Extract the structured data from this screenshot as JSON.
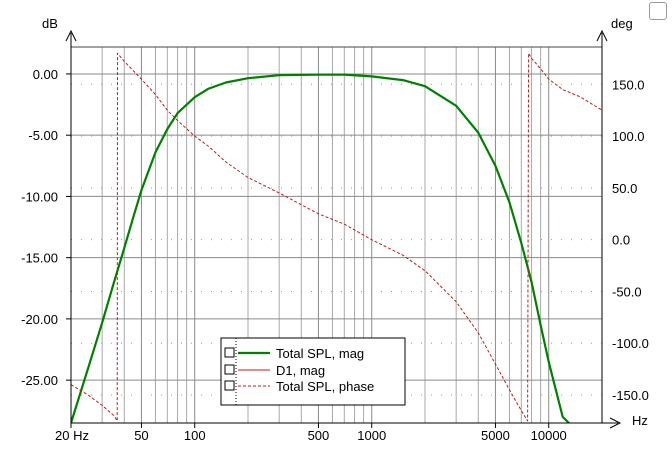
{
  "chart_data": {
    "type": "line",
    "xlabel": "Hz",
    "xscale": "log",
    "xlim": [
      20,
      20000
    ],
    "x_tick_labels": [
      {
        "value": 20,
        "label": "20 Hz"
      },
      {
        "value": 50,
        "label": "50"
      },
      {
        "value": 100,
        "label": "100"
      },
      {
        "value": 500,
        "label": "500"
      },
      {
        "value": 1000,
        "label": "1000"
      },
      {
        "value": 5000,
        "label": "5000"
      },
      {
        "value": 10000,
        "label": "10000"
      }
    ],
    "ylabel_left": "dB",
    "ylim_left": [
      -28.5,
      2.2
    ],
    "y_left_ticks": [
      0,
      -5,
      -10,
      -15,
      -20,
      -25
    ],
    "y_left_tick_labels": [
      "0.00",
      "-5.00",
      "-10.00",
      "-15.00",
      "-20.00",
      "-25.00"
    ],
    "ylabel_right": "deg",
    "ylim_right": [
      -177,
      186
    ],
    "y_right_ticks": [
      150,
      100,
      50,
      0,
      -50,
      -100,
      -150
    ],
    "y_right_tick_labels": [
      "150.0",
      "100.0",
      "50.0",
      "0.0",
      "-50.0",
      "-100.0",
      "-150.0"
    ],
    "grid": true,
    "legend_position": "bottom-center",
    "series": [
      {
        "name": "Total SPL, mag",
        "axis": "left",
        "color": "#008000",
        "style": "solid",
        "x": [
          20,
          25,
          30,
          35,
          40,
          45,
          50,
          60,
          70,
          80,
          100,
          120,
          150,
          200,
          300,
          500,
          700,
          1000,
          1500,
          2000,
          3000,
          4000,
          5000,
          6000,
          7000,
          8000,
          9000,
          10000,
          12000,
          13000
        ],
        "y": [
          -28.5,
          -24,
          -20.3,
          -17,
          -14.2,
          -11.7,
          -9.5,
          -6.4,
          -4.5,
          -3.2,
          -1.9,
          -1.2,
          -0.7,
          -0.35,
          -0.1,
          -0.05,
          -0.05,
          -0.2,
          -0.5,
          -1.0,
          -2.6,
          -4.8,
          -7.5,
          -10.5,
          -13.8,
          -17,
          -20.5,
          -23.5,
          -28,
          -28.5
        ]
      },
      {
        "name": "D1, mag",
        "axis": "left",
        "color": "#b22222",
        "style": "solid",
        "x": [],
        "y": []
      },
      {
        "name": "Total SPL, phase",
        "axis": "right",
        "color": "#b22222",
        "style": "dashed",
        "x": [
          20,
          25,
          30,
          35,
          36.5,
          36.6,
          40,
          50,
          60,
          70,
          80,
          100,
          120,
          150,
          200,
          300,
          500,
          700,
          1000,
          1500,
          2000,
          3000,
          4000,
          5000,
          6000,
          7000,
          7600,
          7700,
          8000,
          9000,
          10000,
          12000,
          15000,
          20000
        ],
        "y": [
          -140,
          -150,
          -160,
          -170,
          -175,
          180,
          172,
          155,
          140,
          125,
          115,
          100,
          90,
          75,
          60,
          45,
          25,
          15,
          0,
          -15,
          -30,
          -60,
          -90,
          -120,
          -145,
          -165,
          -175,
          180,
          175,
          165,
          155,
          145,
          138,
          125
        ]
      }
    ]
  }
}
